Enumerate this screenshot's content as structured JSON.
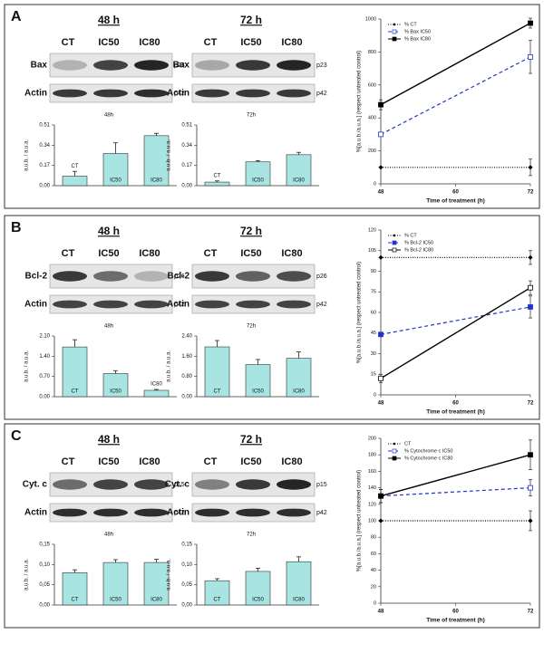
{
  "panels": [
    {
      "letter": "A",
      "blots": [
        {
          "time": "48 h",
          "lanes": [
            "CT",
            "IC50",
            "IC80"
          ],
          "rows": [
            {
              "protein": "Bax",
              "size": "p23"
            },
            {
              "protein": "Actin",
              "size": "p42"
            }
          ]
        },
        {
          "time": "72 h",
          "lanes": [
            "CT",
            "IC50",
            "IC80"
          ],
          "rows": [
            {
              "protein": "Bax",
              "size": "p23"
            },
            {
              "protein": "Actin",
              "size": "p42"
            }
          ]
        }
      ]
    },
    {
      "letter": "B",
      "blots": [
        {
          "time": "48 h",
          "lanes": [
            "CT",
            "IC50",
            "IC80"
          ],
          "rows": [
            {
              "protein": "Bcl-2",
              "size": "p26"
            },
            {
              "protein": "Actin",
              "size": "p42"
            }
          ]
        },
        {
          "time": "72 h",
          "lanes": [
            "CT",
            "IC50",
            "IC80"
          ],
          "rows": [
            {
              "protein": "Bcl-2",
              "size": "p26"
            },
            {
              "protein": "Actin",
              "size": "p42"
            }
          ]
        }
      ]
    },
    {
      "letter": "C",
      "blots": [
        {
          "time": "48 h",
          "lanes": [
            "CT",
            "IC50",
            "IC80"
          ],
          "rows": [
            {
              "protein": "Cyt. c",
              "size": "p15"
            },
            {
              "protein": "Actin",
              "size": "p42"
            }
          ]
        },
        {
          "time": "72 h",
          "lanes": [
            "CT",
            "IC50",
            "IC80"
          ],
          "rows": [
            {
              "protein": "Cyt. c",
              "size": "p15"
            },
            {
              "protein": "Actin",
              "size": "p42"
            }
          ]
        }
      ]
    }
  ],
  "chart_data": [
    {
      "type": "bar",
      "title": "48h",
      "categories": [
        "CT",
        "IC50",
        "IC80"
      ],
      "values": [
        0.08,
        0.27,
        0.42
      ],
      "errors": [
        0.04,
        0.09,
        0.02
      ],
      "color": "#a8e4e2",
      "ylim": [
        0,
        0.51
      ],
      "yticks": [
        {
          "value": 0,
          "label": "0.00"
        },
        0.17,
        0.34,
        0.51
      ],
      "ylabel": "a.u.b. / a.u.a."
    },
    {
      "type": "bar",
      "title": "72h",
      "categories": [
        "CT",
        "IC50",
        "IC80"
      ],
      "values": [
        0.03,
        0.2,
        0.26
      ],
      "errors": [
        0.01,
        0.01,
        0.02
      ],
      "color": "#a8e4e2",
      "ylim": [
        0,
        0.51
      ],
      "yticks": [
        {
          "value": 0,
          "label": "0.00"
        },
        0.17,
        0.34,
        0.51
      ],
      "ylabel": "a.u.b. / a.u.a."
    },
    {
      "type": "line",
      "x": [
        48,
        72
      ],
      "xlim": [
        48,
        72
      ],
      "xticks": [
        48,
        60,
        72
      ],
      "ylim": [
        0,
        1000
      ],
      "yticks": [
        0,
        200,
        400,
        600,
        800,
        1000
      ],
      "xlabel": "Time of treatment (h)",
      "ylabel": "%[a.u.b./a.u.a.] (respect untreated control)",
      "legend": "top-left",
      "series": [
        {
          "name": "% CT",
          "color": "#000000",
          "dash": "dotted",
          "marker": "diamond",
          "values": [
            100,
            100
          ],
          "errors": [
            0,
            50
          ]
        },
        {
          "name": "% Bax IC50",
          "color": "#2233cc",
          "dash": "dashed",
          "marker": "square-open",
          "values": [
            300,
            770
          ],
          "errors": [
            0,
            100
          ]
        },
        {
          "name": "% Bax IC80",
          "color": "#000000",
          "dash": "solid",
          "marker": "square-filled",
          "values": [
            480,
            975
          ],
          "errors": [
            30,
            30
          ]
        }
      ]
    },
    {
      "type": "bar",
      "title": "48h",
      "categories": [
        "CT",
        "IC50",
        "IC80"
      ],
      "values": [
        1.72,
        0.8,
        0.22
      ],
      "errors": [
        0.25,
        0.1,
        0.03
      ],
      "color": "#a8e4e2",
      "ylim": [
        0,
        2.1
      ],
      "yticks": [
        {
          "value": 0,
          "label": "0.00"
        },
        {
          "value": 0.7,
          "label": "0.70"
        },
        {
          "value": 1.4,
          "label": "1.40"
        },
        {
          "value": 2.1,
          "label": "2.10"
        }
      ],
      "ylabel": "a.u.b. / a.u.a."
    },
    {
      "type": "bar",
      "title": "72h",
      "categories": [
        "CT",
        "IC50",
        "IC80"
      ],
      "values": [
        1.97,
        1.27,
        1.52
      ],
      "errors": [
        0.25,
        0.2,
        0.25
      ],
      "color": "#a8e4e2",
      "ylim": [
        0,
        2.4
      ],
      "yticks": [
        {
          "value": 0,
          "label": "0.00"
        },
        {
          "value": 0.8,
          "label": "0.80"
        },
        {
          "value": 1.6,
          "label": "1.60"
        },
        {
          "value": 2.4,
          "label": "2.40"
        }
      ],
      "ylabel": "a.u.b. / a.u.a."
    },
    {
      "type": "line",
      "x": [
        48,
        72
      ],
      "xlim": [
        48,
        72
      ],
      "xticks": [
        48,
        60,
        72
      ],
      "ylim": [
        0,
        120
      ],
      "yticks": [
        0,
        15,
        30,
        45,
        60,
        75,
        90,
        105,
        120
      ],
      "xlabel": "Time of treatment (h)",
      "ylabel": "%[a.u.b./a.u.a.] (respect untreated control)",
      "legend": "top-left",
      "series": [
        {
          "name": "% CT",
          "color": "#000000",
          "dash": "dotted",
          "marker": "diamond",
          "values": [
            100,
            100
          ],
          "errors": [
            0,
            5
          ]
        },
        {
          "name": "% Bcl-2 IC50",
          "color": "#2233cc",
          "dash": "dashed",
          "marker": "square-filled",
          "values": [
            44,
            64
          ],
          "errors": [
            0,
            8
          ]
        },
        {
          "name": "% Bcl-2 IC80",
          "color": "#000000",
          "dash": "solid",
          "marker": "square-open",
          "values": [
            12,
            78
          ],
          "errors": [
            3,
            5
          ]
        }
      ]
    },
    {
      "type": "bar",
      "title": "48h",
      "categories": [
        "CT",
        "IC50",
        "IC80"
      ],
      "values": [
        0.08,
        0.105,
        0.105
      ],
      "errors": [
        0.007,
        0.007,
        0.008
      ],
      "color": "#a8e4e2",
      "ylim": [
        0,
        0.15
      ],
      "yticks": [
        {
          "value": 0,
          "label": "0,00"
        },
        {
          "value": 0.05,
          "label": "0,05"
        },
        {
          "value": 0.1,
          "label": "0,10"
        },
        {
          "value": 0.15,
          "label": "0,15"
        }
      ],
      "ylabel": "a.u.b. / a.u.a."
    },
    {
      "type": "bar",
      "title": "72h",
      "categories": [
        "CT",
        "IC50",
        "IC80"
      ],
      "values": [
        0.06,
        0.083,
        0.107
      ],
      "errors": [
        0.005,
        0.008,
        0.012
      ],
      "color": "#a8e4e2",
      "ylim": [
        0,
        0.15
      ],
      "yticks": [
        {
          "value": 0,
          "label": "0,00"
        },
        {
          "value": 0.05,
          "label": "0,05"
        },
        {
          "value": 0.1,
          "label": "0,10"
        },
        {
          "value": 0.15,
          "label": "0,15"
        }
      ],
      "ylabel": "a.u.b. / a.u.a."
    },
    {
      "type": "line",
      "x": [
        48,
        72
      ],
      "xlim": [
        48,
        72
      ],
      "xticks": [
        48,
        60,
        72
      ],
      "ylim": [
        0,
        200
      ],
      "yticks": [
        0,
        20,
        40,
        60,
        80,
        100,
        120,
        140,
        160,
        180,
        200
      ],
      "xlabel": "Time of treatment (h)",
      "ylabel": "%[a.u.b./a.u.a.] (respect untreated control)",
      "legend": "top-left",
      "series": [
        {
          "name": "CT",
          "color": "#000000",
          "dash": "dotted",
          "marker": "diamond",
          "values": [
            100,
            100
          ],
          "errors": [
            0,
            12
          ]
        },
        {
          "name": "% Cytochrome c IC50",
          "color": "#2233cc",
          "dash": "dashed",
          "marker": "square-open",
          "values": [
            130,
            140
          ],
          "errors": [
            8,
            10
          ]
        },
        {
          "name": "% Cytochrome c IC80",
          "color": "#000000",
          "dash": "solid",
          "marker": "square-filled",
          "values": [
            130,
            180
          ],
          "errors": [
            8,
            18
          ]
        }
      ]
    }
  ]
}
